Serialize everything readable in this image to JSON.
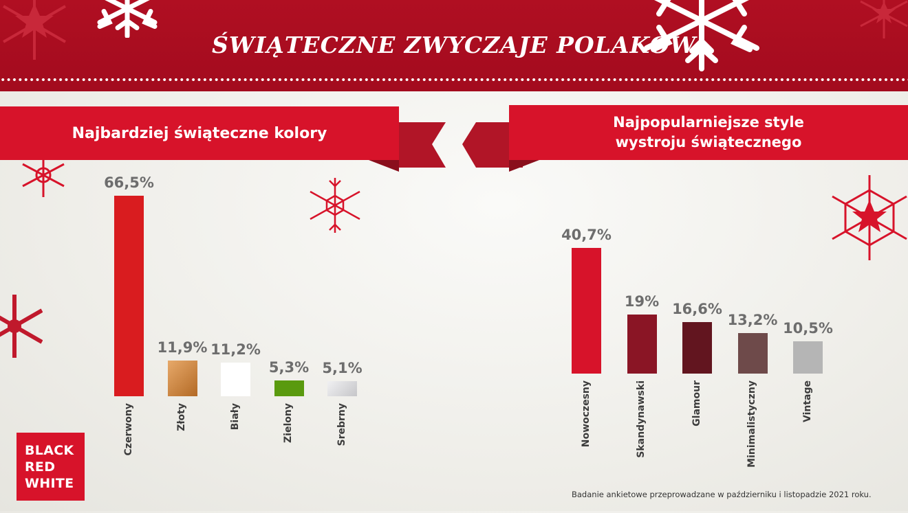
{
  "page_title": "ŚWIĄTECZNE ZWYCZAJE POLAKÓW",
  "colors": {
    "header_red": "#a30b1e",
    "ribbon_red": "#d7132a",
    "ribbon_fold": "#b11527"
  },
  "logo": {
    "lines": [
      "BLACK",
      "RED",
      "WHITE"
    ]
  },
  "footnote": "Badanie ankietowe przeprowadzane w październiku i listopadzie 2021 roku.",
  "chart_data": [
    {
      "type": "bar",
      "title": "Najbardziej świąteczne kolory",
      "categories": [
        "Czerwony",
        "Złoty",
        "Biały",
        "Zielony",
        "Srebrny"
      ],
      "values": [
        66.5,
        11.9,
        11.2,
        5.3,
        5.1
      ],
      "value_labels": [
        "66,5%",
        "11,9%",
        "11,2%",
        "5,3%",
        "5,1%"
      ],
      "bar_colors": [
        "#d91c1f",
        "#c98a47",
        "#ffffff",
        "#5a9a0f",
        "#d4d4d6"
      ],
      "unit": "%",
      "grid": false
    },
    {
      "type": "bar",
      "title": "Najpopularniejsze style wystroju świątecznego",
      "title_lines": [
        "Najpopularniejsze style",
        "wystroju świątecznego"
      ],
      "categories": [
        "Nowoczesny",
        "Skandynawski",
        "Glamour",
        "Minimalistyczny",
        "Vintage"
      ],
      "values": [
        40.7,
        19,
        16.6,
        13.2,
        10.5
      ],
      "value_labels": [
        "40,7%",
        "19%",
        "16,6%",
        "13,2%",
        "10,5%"
      ],
      "bar_colors": [
        "#d7132a",
        "#8a1525",
        "#62151f",
        "#6e4a4a",
        "#b5b5b5"
      ],
      "unit": "%",
      "grid": false
    }
  ]
}
